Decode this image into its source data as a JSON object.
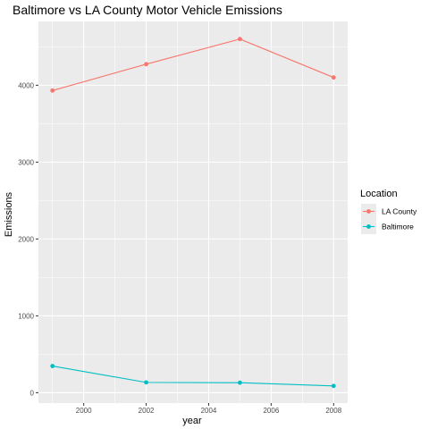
{
  "chart_data": {
    "type": "line",
    "title": "Baltimore vs LA County Motor Vehicle Emissions",
    "xlabel": "year",
    "ylabel": "Emissions",
    "x": [
      1999,
      2002,
      2005,
      2008
    ],
    "xlim": [
      1998.55,
      2008.45
    ],
    "ylim": [
      -135,
      4830
    ],
    "xticks": [
      2000,
      2002,
      2004,
      2006,
      2008
    ],
    "yticks": [
      0,
      1000,
      2000,
      3000,
      4000
    ],
    "grid": true,
    "legend": {
      "title": "Location",
      "placement": "right"
    },
    "series": [
      {
        "name": "LA County",
        "color": "#F8766D",
        "values": [
          3931,
          4274,
          4601,
          4101
        ]
      },
      {
        "name": "Baltimore",
        "color": "#00BFC4",
        "values": [
          347,
          134,
          130,
          88
        ]
      }
    ]
  }
}
